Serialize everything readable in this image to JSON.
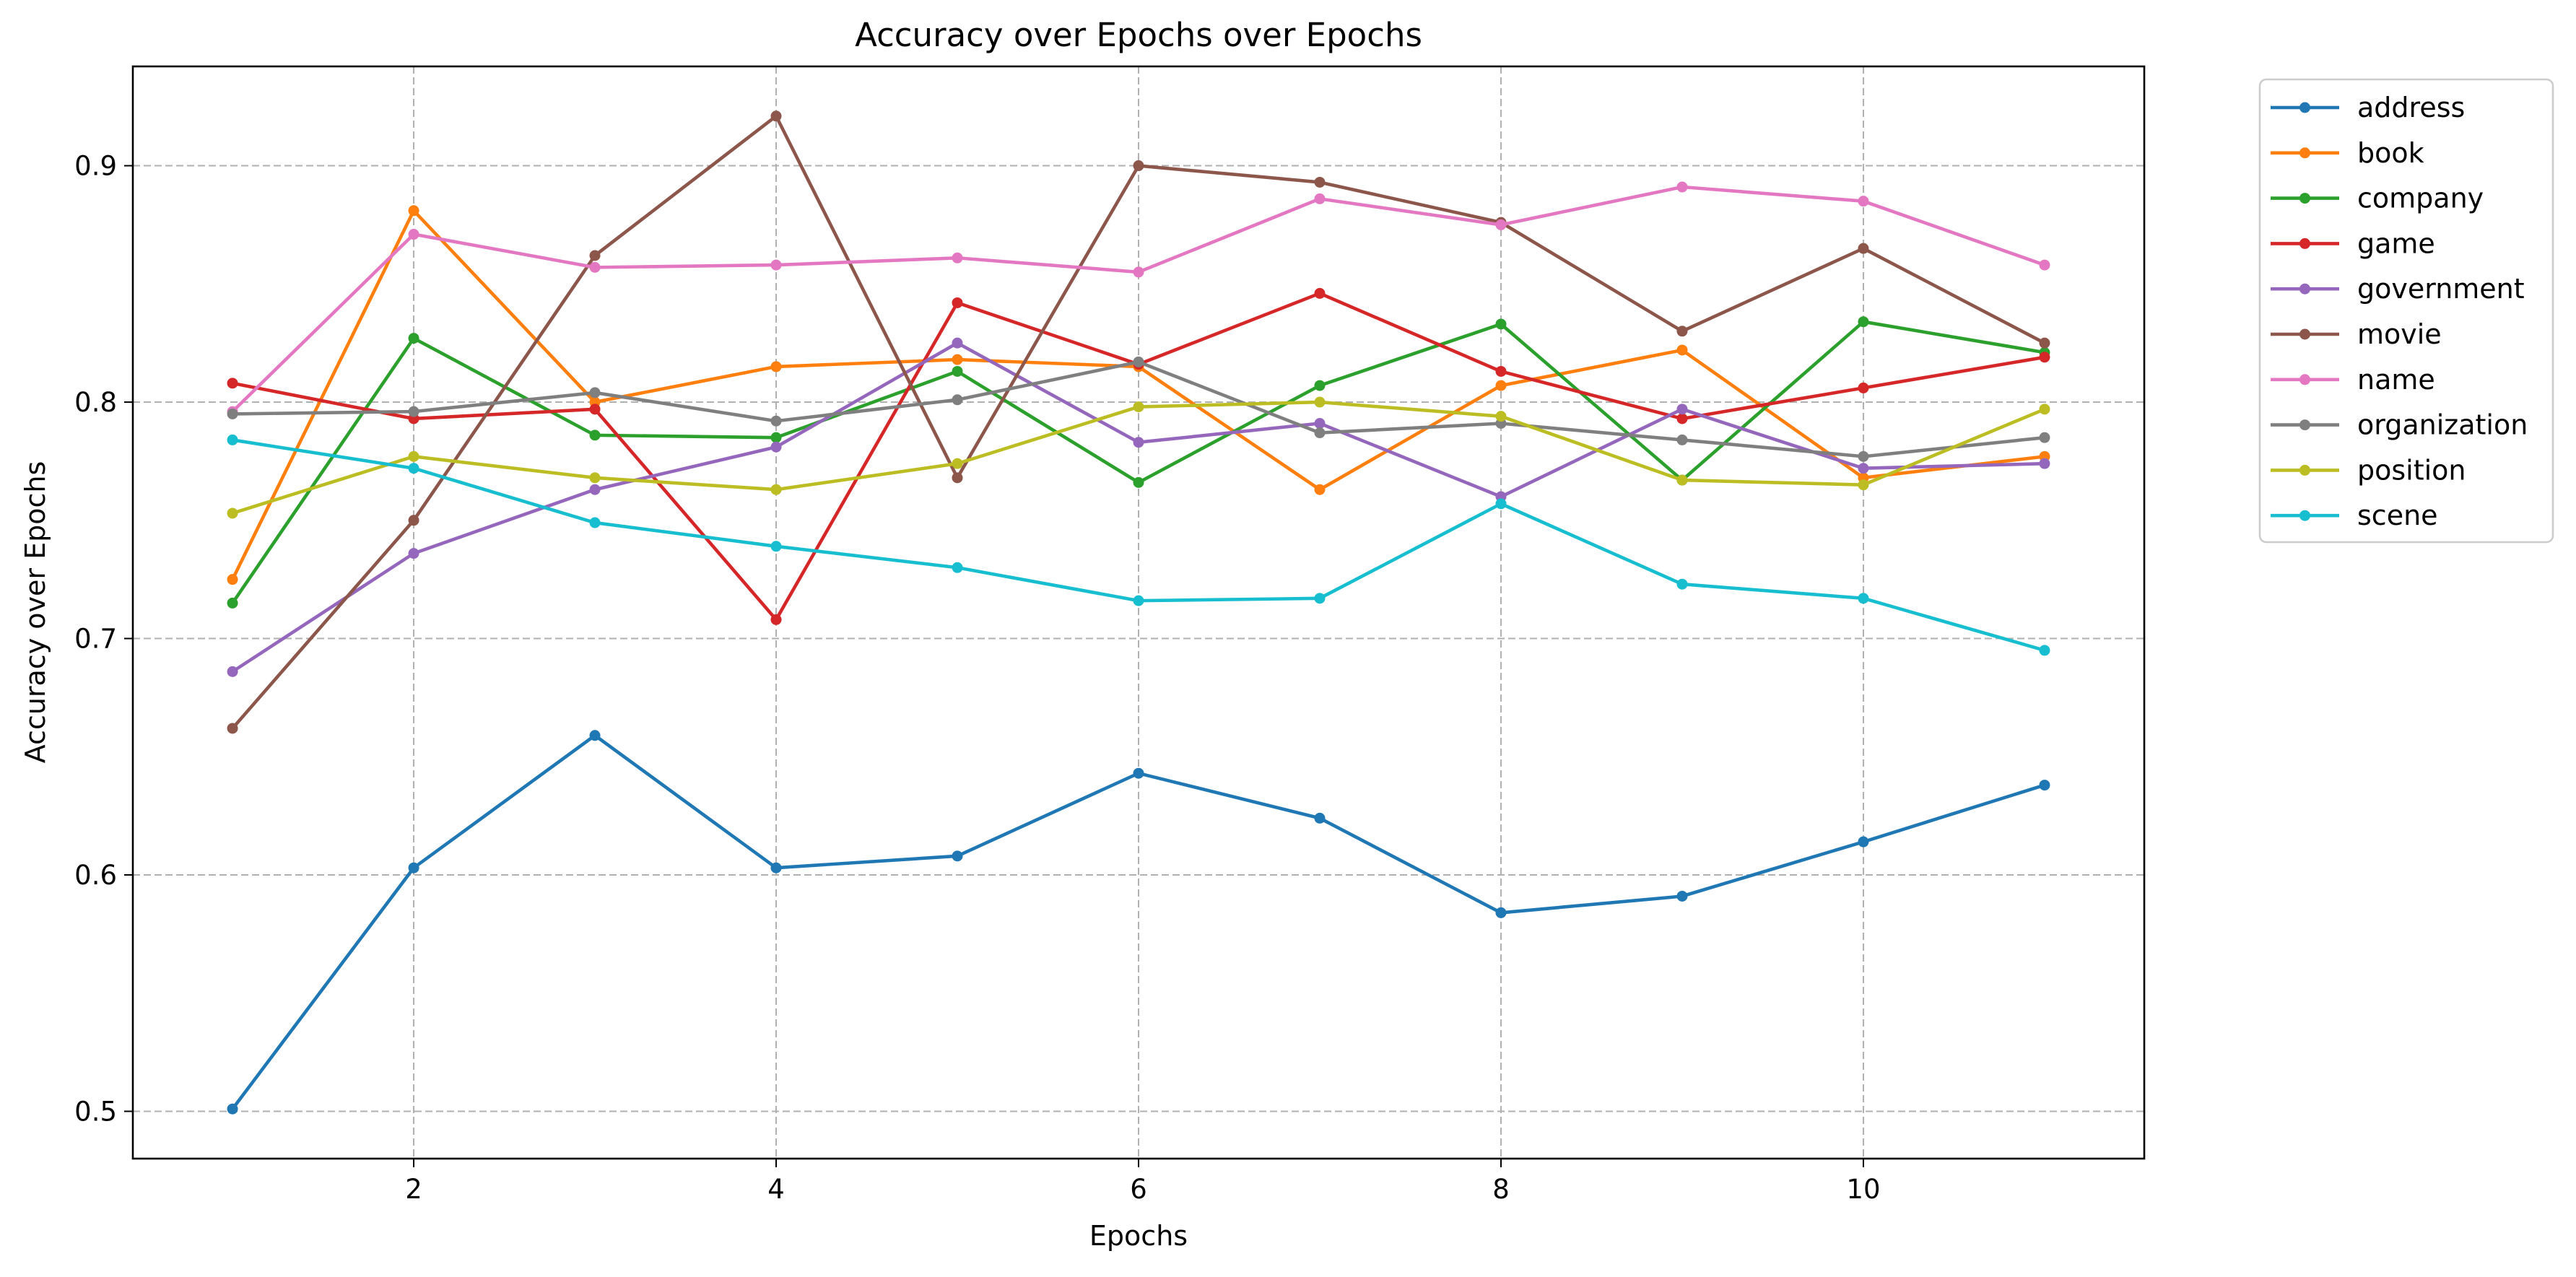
{
  "chart_data": {
    "type": "line",
    "title": "Accuracy over Epochs over Epochs",
    "xlabel": "Epochs",
    "ylabel": "Accuracy over Epochs",
    "x": [
      1,
      2,
      3,
      4,
      5,
      6,
      7,
      8,
      9,
      10,
      11
    ],
    "xlim": [
      0.45,
      11.55
    ],
    "ylim": [
      0.48,
      0.942
    ],
    "xticks": [
      2,
      4,
      6,
      8,
      10
    ],
    "xtick_labels": [
      "2",
      "4",
      "6",
      "8",
      "10"
    ],
    "yticks": [
      0.5,
      0.6,
      0.7,
      0.8,
      0.9
    ],
    "ytick_labels": [
      "0.5",
      "0.6",
      "0.7",
      "0.8",
      "0.9"
    ],
    "grid": true,
    "legend_position": "outside-upper-right",
    "series": [
      {
        "name": "address",
        "color": "#1f77b4",
        "values": [
          0.501,
          0.603,
          0.659,
          0.603,
          0.608,
          0.643,
          0.624,
          0.584,
          0.591,
          0.614,
          0.638
        ]
      },
      {
        "name": "book",
        "color": "#ff7f0e",
        "values": [
          0.725,
          0.881,
          0.8,
          0.815,
          0.818,
          0.815,
          0.763,
          0.807,
          0.822,
          0.768,
          0.777
        ]
      },
      {
        "name": "company",
        "color": "#2ca02c",
        "values": [
          0.715,
          0.827,
          0.786,
          0.785,
          0.813,
          0.766,
          0.807,
          0.833,
          0.767,
          0.834,
          0.821
        ]
      },
      {
        "name": "game",
        "color": "#d62728",
        "values": [
          0.808,
          0.793,
          0.797,
          0.708,
          0.842,
          0.816,
          0.846,
          0.813,
          0.793,
          0.806,
          0.819
        ]
      },
      {
        "name": "government",
        "color": "#9467bd",
        "values": [
          0.686,
          0.736,
          0.763,
          0.781,
          0.825,
          0.783,
          0.791,
          0.76,
          0.797,
          0.772,
          0.774
        ]
      },
      {
        "name": "movie",
        "color": "#8c564b",
        "values": [
          0.662,
          0.75,
          0.862,
          0.921,
          0.768,
          0.9,
          0.893,
          0.876,
          0.83,
          0.865,
          0.825
        ]
      },
      {
        "name": "name",
        "color": "#e377c2",
        "values": [
          0.796,
          0.871,
          0.857,
          0.858,
          0.861,
          0.855,
          0.886,
          0.875,
          0.891,
          0.885,
          0.858
        ]
      },
      {
        "name": "organization",
        "color": "#7f7f7f",
        "values": [
          0.795,
          0.796,
          0.804,
          0.792,
          0.801,
          0.817,
          0.787,
          0.791,
          0.784,
          0.777,
          0.785
        ]
      },
      {
        "name": "position",
        "color": "#bcbd22",
        "values": [
          0.753,
          0.777,
          0.768,
          0.763,
          0.774,
          0.798,
          0.8,
          0.794,
          0.767,
          0.765,
          0.797
        ]
      },
      {
        "name": "scene",
        "color": "#17becf",
        "values": [
          0.784,
          0.772,
          0.749,
          0.739,
          0.73,
          0.716,
          0.717,
          0.757,
          0.723,
          0.717,
          0.695
        ]
      }
    ]
  }
}
